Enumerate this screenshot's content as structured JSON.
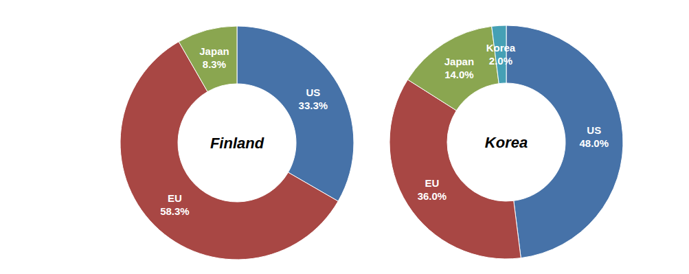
{
  "chart_data": [
    {
      "type": "pie",
      "title": "Finland",
      "categories": [
        "US",
        "EU",
        "Japan"
      ],
      "values": [
        33.3,
        58.3,
        8.3
      ],
      "value_labels": [
        "33.3%",
        "58.3%",
        "8.3%"
      ],
      "colors": [
        "#4672a8",
        "#a84744",
        "#8aa650"
      ],
      "data_labels": true
    },
    {
      "type": "pie",
      "title": "Korea",
      "categories": [
        "US",
        "EU",
        "Japan",
        "Korea"
      ],
      "values": [
        48.0,
        36.0,
        14.0,
        2.0
      ],
      "value_labels": [
        "48.0%",
        "36.0%",
        "14.0%",
        "2.0%"
      ],
      "colors": [
        "#4672a8",
        "#a84744",
        "#8aa650",
        "#45a0b5"
      ],
      "data_labels": true
    }
  ]
}
